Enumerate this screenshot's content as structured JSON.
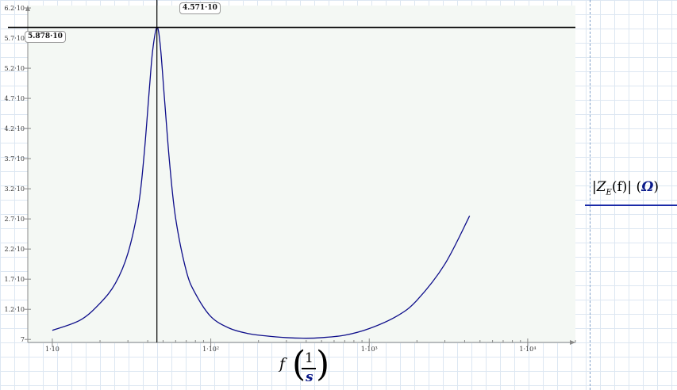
{
  "chart_data": {
    "type": "line",
    "x_scale": "log",
    "xlim": [
      7,
      20000
    ],
    "ylim": [
      6.5,
      62.4
    ],
    "grid": false,
    "x_ticks": [
      {
        "value": 10,
        "label": "1·10"
      },
      {
        "value": 100,
        "label": "1·10²"
      },
      {
        "value": 1000,
        "label": "1·10³"
      },
      {
        "value": 10000,
        "label": "1·10⁴"
      }
    ],
    "y_ticks": [
      {
        "value": 7,
        "label": "7"
      },
      {
        "value": 12,
        "label": "1.2·10"
      },
      {
        "value": 17,
        "label": "1.7·10"
      },
      {
        "value": 22,
        "label": "2.2·10"
      },
      {
        "value": 27,
        "label": "2.7·10"
      },
      {
        "value": 32,
        "label": "3.2·10"
      },
      {
        "value": 37,
        "label": "3.7·10"
      },
      {
        "value": 42,
        "label": "4.2·10"
      },
      {
        "value": 47,
        "label": "4.7·10"
      },
      {
        "value": 52,
        "label": "5.2·10"
      },
      {
        "value": 57,
        "label": "5.7·10"
      },
      {
        "value": 62,
        "label": "6.2·10"
      }
    ],
    "series": [
      {
        "color": "#0d0d8a",
        "x": [
          10,
          15,
          20,
          25,
          30,
          35,
          38,
          41,
          43,
          45.71,
          48,
          51,
          55,
          60,
          70,
          80,
          100,
          130,
          170,
          220,
          300,
          400,
          500,
          700,
          1000,
          1500,
          2000,
          3000,
          4300
        ],
        "y": [
          8.5,
          10.2,
          13.0,
          16.3,
          21.3,
          29.3,
          37.8,
          48.7,
          55.0,
          58.78,
          55.8,
          47.0,
          36.2,
          27.1,
          18.4,
          14.6,
          10.8,
          8.9,
          8.0,
          7.6,
          7.3,
          7.2,
          7.3,
          7.7,
          8.8,
          10.9,
          13.5,
          19.5,
          27.5
        ]
      }
    ],
    "crosshair": {
      "x": 45.71,
      "y": 58.78
    },
    "readout_x": "4.571·10",
    "readout_y": "5.878·10",
    "xlabel": {
      "var": "f",
      "num": "1",
      "den": "s"
    },
    "ylabel": {
      "abs_open": "|",
      "name": "Z",
      "sub": "E",
      "arg": "(f)",
      "abs_close": "|",
      "unit_open": " (",
      "unit": "Ω",
      "unit_close": ")"
    }
  }
}
